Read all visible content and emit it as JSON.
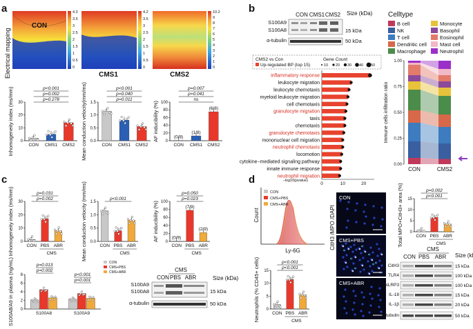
{
  "colors": {
    "con": "#c8c8c8",
    "cms_pbs": "#e8382b",
    "cms_abr": "#f0a93b",
    "cms1": "#2b5fb4",
    "cms2": "#e8382b",
    "bar_red": "#e8432e",
    "arrow": "#8a3fc0",
    "map_low": "#1e3fb8",
    "map_high": "#d7301f"
  },
  "panel_a": {
    "label": "a",
    "ylabel": "Electrical mapping",
    "maps": [
      {
        "name": "CON",
        "scale_ticks": [
          "4.3",
          "3.5",
          "3",
          "2.5",
          "2",
          "1.5",
          "1",
          "0.5",
          "0"
        ]
      },
      {
        "name": "CMS1",
        "scale_ticks": [
          "4.2",
          "3.5",
          "3",
          "2.5",
          "2",
          "1.5",
          "1",
          "0.5",
          "0"
        ]
      },
      {
        "name": "CMS2",
        "scale_ticks": [
          "10.2",
          "9",
          "8",
          "7",
          "6",
          "5",
          "4",
          "3",
          "2",
          "1",
          "0"
        ]
      }
    ],
    "inhomogeneity": {
      "ylabel": "Inhomogeneity index (ms/mm)",
      "yticks": [
        "0",
        "10",
        "20",
        "30"
      ],
      "categories": [
        "CON",
        "CMS1",
        "CMS2"
      ],
      "values": [
        2,
        5,
        14
      ],
      "pvals": [
        "p<0.001",
        "p=0.002",
        "p=0.278"
      ]
    },
    "conduction": {
      "ylabel": "Mean conduction velocity(mm/ms)",
      "yticks": [
        "0.0",
        "0.5",
        "1.0",
        "1.5"
      ],
      "categories": [
        "CON",
        "CMS1",
        "CMS2"
      ],
      "values": [
        1.15,
        0.8,
        0.55
      ],
      "pvals": [
        "p<0.001",
        "p=0.040",
        "p=0.011"
      ]
    },
    "af": {
      "ylabel": "AF inducibility (%)",
      "yticks": [
        "0",
        "20",
        "40",
        "60",
        "80",
        "100"
      ],
      "categories": [
        "CON",
        "CMS1",
        "CMS2"
      ],
      "values": [
        0,
        12.5,
        75
      ],
      "labels": [
        "(0/8)",
        "(1/8)",
        "(6/8)"
      ],
      "pvals": [
        "p=0.007",
        "p=0.041",
        "ns"
      ]
    }
  },
  "panel_b": {
    "label": "b",
    "blot": {
      "lanes": [
        "CON",
        "CMS1",
        "CMS2"
      ],
      "size_header": "Size (kDa)",
      "rows": [
        "S100A9",
        "S100A8",
        "α-tubulin"
      ],
      "sizes": [
        "15 kDa",
        "50 kDa"
      ]
    },
    "go_chart": {
      "title": "CMS2 vs Con",
      "legend_bar": "Up-regulated BP (top 15)",
      "legend_count_title": "Gene Count",
      "legend_counts": [
        "10",
        "20",
        "30",
        "40",
        "50"
      ],
      "xlabel": "−log10(pvalue)",
      "xticks": [
        "0",
        "10",
        "20"
      ],
      "terms": [
        "inflammatory response",
        "leukocyte migration",
        "leukocyte chemotaxis",
        "myeloid leukocyte migration",
        "cell chemotaxis",
        "granulocyte migration",
        "taxis",
        "chemotaxis",
        "granulocyte chemotaxis",
        "mononuclear cell migration",
        "neutrophil chemotaxis",
        "locomotion",
        "cytokine−mediated signaling pathway",
        "innate immune response",
        "neutrophil migration"
      ],
      "highlight": [
        true,
        false,
        false,
        false,
        false,
        true,
        false,
        false,
        true,
        false,
        true,
        false,
        false,
        false,
        true
      ],
      "values": [
        23,
        14,
        13,
        12.5,
        12,
        11.5,
        11,
        11,
        10.5,
        10,
        10,
        9.5,
        9,
        9,
        8.5
      ]
    },
    "celltype": {
      "legend_title": "Celltype",
      "types": [
        "B cell",
        "NK",
        "T cell",
        "Dendritic cell",
        "Macrophage",
        "Monocyte",
        "Basophil",
        "Eosinophil",
        "Mast cell",
        "Neutrophil"
      ],
      "type_colors": [
        "#c0395b",
        "#3a5fa0",
        "#3c7cbf",
        "#d8684a",
        "#4b8c4b",
        "#e8c23a",
        "#8b4a9a",
        "#e37b6a",
        "#f2b8c6",
        "#9b30c8"
      ],
      "ylabel": "Immune cells infiltration ratio",
      "yticks": [
        "0.00",
        "0.25",
        "0.50",
        "0.75",
        "1.00"
      ],
      "groups": [
        "CON",
        "CMS2"
      ],
      "fractions": [
        [
          0.06,
          0.16,
          0.18,
          0.12,
          0.2,
          0.08,
          0.06,
          0.1,
          0.02,
          0.02
        ],
        [
          0.05,
          0.15,
          0.16,
          0.12,
          0.18,
          0.08,
          0.06,
          0.06,
          0.06,
          0.08
        ]
      ]
    }
  },
  "panel_c": {
    "label": "c",
    "group_label": "CMS",
    "inhomogeneity": {
      "ylabel": "Inhomogeneity index (ms/mm)",
      "yticks": [
        "0",
        "10",
        "20",
        "30"
      ],
      "categories": [
        "CON",
        "PBS",
        "ABR"
      ],
      "values": [
        1.5,
        17,
        8
      ],
      "pvals": [
        "p=0.031",
        "p=0.002"
      ]
    },
    "conduction": {
      "ylabel": "Mean conduction velocity (mm/ms)",
      "yticks": [
        "0.0",
        "0.5",
        "1.0",
        "1.5"
      ],
      "categories": [
        "CON",
        "PBS",
        "ABR"
      ],
      "values": [
        1.15,
        0.4,
        0.8
      ],
      "pvals": [
        "p<0.001"
      ]
    },
    "af": {
      "ylabel": "AF inducibility (%)",
      "yticks": [
        "0",
        "20",
        "40",
        "60",
        "80",
        "100"
      ],
      "categories": [
        "CON",
        "PBS",
        "ABR"
      ],
      "values": [
        0,
        77.8,
        22.2
      ],
      "labels": [
        "(0/9)",
        "(7/9)",
        "(2/9)"
      ],
      "pvals": [
        "p=0.050",
        "p=0.023"
      ]
    },
    "plasma": {
      "ylabel": "S100A8/A9 in plasma (ng/mL)",
      "yticks": [
        "0",
        "2",
        "4",
        "6",
        "8"
      ],
      "categories": [
        "S100A8",
        "S100A9"
      ],
      "series": [
        {
          "name": "CON",
          "values": [
            2.1,
            2.3
          ]
        },
        {
          "name": "CMS+PBS",
          "values": [
            4.5,
            3.6
          ]
        },
        {
          "name": "CMS+ABR",
          "values": [
            2.6,
            2.5
          ]
        }
      ],
      "pvals": [
        "p=0.013",
        "p=0.002",
        "p<0.001",
        "p<0.001"
      ]
    },
    "blot": {
      "lanes": [
        "CON",
        "PBS",
        "ABR"
      ],
      "group": "CMS",
      "size_header": "Size (kDa)",
      "rows": [
        "S100A9",
        "S100A8",
        "α-tubulin"
      ],
      "sizes": [
        "15 kDa",
        "50 kDa"
      ]
    }
  },
  "panel_d": {
    "label": "d",
    "flow": {
      "ylabel": "Count",
      "xlabel": "Ly-6G",
      "legend": [
        "CON",
        "CMS+PBS",
        "CMS+ABR"
      ]
    },
    "neutrophils": {
      "ylabel": "Neutrophils (% CD45+ cells)",
      "yticks": [
        "0",
        "5",
        "10",
        "15"
      ],
      "categories": [
        "CON",
        "PBS",
        "ABR"
      ],
      "values": [
        1.8,
        11.5,
        5.5
      ],
      "pvals": [
        "p<0.001",
        "p<0.001"
      ],
      "group": "CMS"
    },
    "images": {
      "side_label": "CitH3 /MPO /DAPI",
      "panels": [
        "CON",
        "CMS+PBS",
        "CMS+ABR"
      ]
    },
    "mpo": {
      "ylabel": "Total MPO+CitH3+ area (%)",
      "yticks": [
        "0",
        "5",
        "10",
        "15"
      ],
      "categories": [
        "CON",
        "PBS",
        "ABR"
      ],
      "values": [
        0.5,
        6.5,
        3.5
      ],
      "pvals": [
        "p=0.002",
        "p<0.001"
      ],
      "group": "CMS"
    },
    "blot": {
      "lanes": [
        "CON",
        "PBS",
        "ABR"
      ],
      "group": "CMS",
      "size_header": "Size (kDa)",
      "rows": [
        "CitH3",
        "TLR4",
        "NLRP3",
        "IL-18",
        "IL-1β",
        "α-tubulin"
      ],
      "sizes": [
        "15 kDa",
        "100 kDa",
        "100 kDa",
        "15 kDa",
        "20 kDa",
        "50 kDa"
      ]
    }
  }
}
